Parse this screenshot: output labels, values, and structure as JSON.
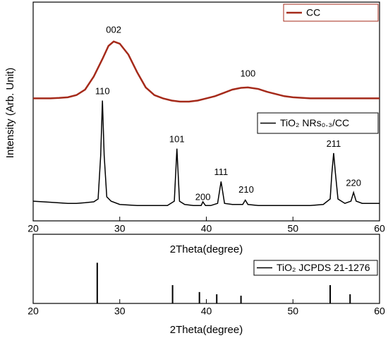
{
  "chart_data": [
    {
      "type": "line",
      "xlabel": "2Theta(degree)",
      "ylabel": "Intensity (Arb. Unit)",
      "xlim": [
        20,
        60
      ],
      "xticks": [
        20,
        30,
        40,
        50,
        60
      ],
      "ylim": [
        0,
        100
      ],
      "series": [
        {
          "name": "CC",
          "color": "#a52a1a",
          "x": [
            20,
            21,
            22,
            23,
            24,
            25,
            26,
            27,
            28,
            28.7,
            29.3,
            30,
            31,
            32,
            33,
            34,
            35,
            36,
            37,
            38,
            39,
            40,
            41,
            42,
            43,
            44,
            44.8,
            46,
            47,
            48,
            49,
            50,
            52,
            54,
            56,
            58,
            60
          ],
          "values": [
            56,
            56,
            56,
            56.2,
            56.5,
            57.5,
            60,
            66,
            74,
            80,
            82,
            81,
            76,
            68,
            61,
            57.5,
            56,
            55,
            54.5,
            54.5,
            55,
            56,
            57,
            58.5,
            60,
            60.8,
            61,
            60.3,
            59,
            58,
            57,
            56.5,
            56,
            56,
            56,
            56,
            56
          ]
        },
        {
          "name": "TiO₂ NRs₀.₃/CC",
          "color": "#000000",
          "x": [
            20,
            22,
            24,
            25,
            26,
            27,
            27.5,
            27.8,
            28,
            28.2,
            28.5,
            29,
            30,
            32,
            34,
            35.5,
            36.3,
            36.6,
            36.9,
            37.5,
            38.5,
            39.4,
            39.6,
            39.9,
            40.5,
            41.3,
            41.7,
            42.1,
            43,
            44.2,
            44.5,
            44.8,
            46,
            48,
            50,
            52,
            53.5,
            54.3,
            54.5,
            54.7,
            54.9,
            55.2,
            56,
            56.7,
            57,
            57.3,
            58,
            60
          ],
          "values": [
            9,
            8.5,
            8,
            8,
            8.3,
            8.7,
            10,
            30,
            55,
            30,
            11,
            9,
            7.5,
            7,
            7,
            7,
            9,
            33,
            9,
            7.5,
            7,
            7,
            8.7,
            7,
            7,
            8,
            18,
            8,
            7.5,
            7.5,
            9.5,
            7.5,
            7,
            7,
            7,
            7,
            7.5,
            10,
            22,
            31,
            22,
            10,
            8,
            9,
            13,
            9,
            8,
            8
          ]
        }
      ],
      "annotations": [
        {
          "text": "002",
          "x": 29.3,
          "y": 87
        },
        {
          "text": "100",
          "x": 44.8,
          "y": 67
        },
        {
          "text": "110",
          "x": 28.0,
          "y": 59
        },
        {
          "text": "101",
          "x": 36.6,
          "y": 37
        },
        {
          "text": "200",
          "x": 39.6,
          "y": 10.6
        },
        {
          "text": "111",
          "x": 41.7,
          "y": 22
        },
        {
          "text": "210",
          "x": 44.6,
          "y": 14
        },
        {
          "text": "211",
          "x": 54.7,
          "y": 35
        },
        {
          "text": "220",
          "x": 57.0,
          "y": 17
        }
      ]
    },
    {
      "type": "bar",
      "xlabel": "2Theta(degree)",
      "xlim": [
        20,
        60
      ],
      "xticks": [
        20,
        30,
        40,
        50,
        60
      ],
      "ylim": [
        0,
        170
      ],
      "legend": "upper right",
      "series": [
        {
          "name": "TiO₂ JCPDS 21-1276",
          "color": "#000000",
          "x": [
            27.4,
            36.1,
            39.2,
            41.2,
            44.0,
            54.3,
            56.6
          ],
          "values": [
            100,
            45,
            28,
            22.5,
            19,
            45,
            22.5
          ]
        }
      ]
    }
  ]
}
